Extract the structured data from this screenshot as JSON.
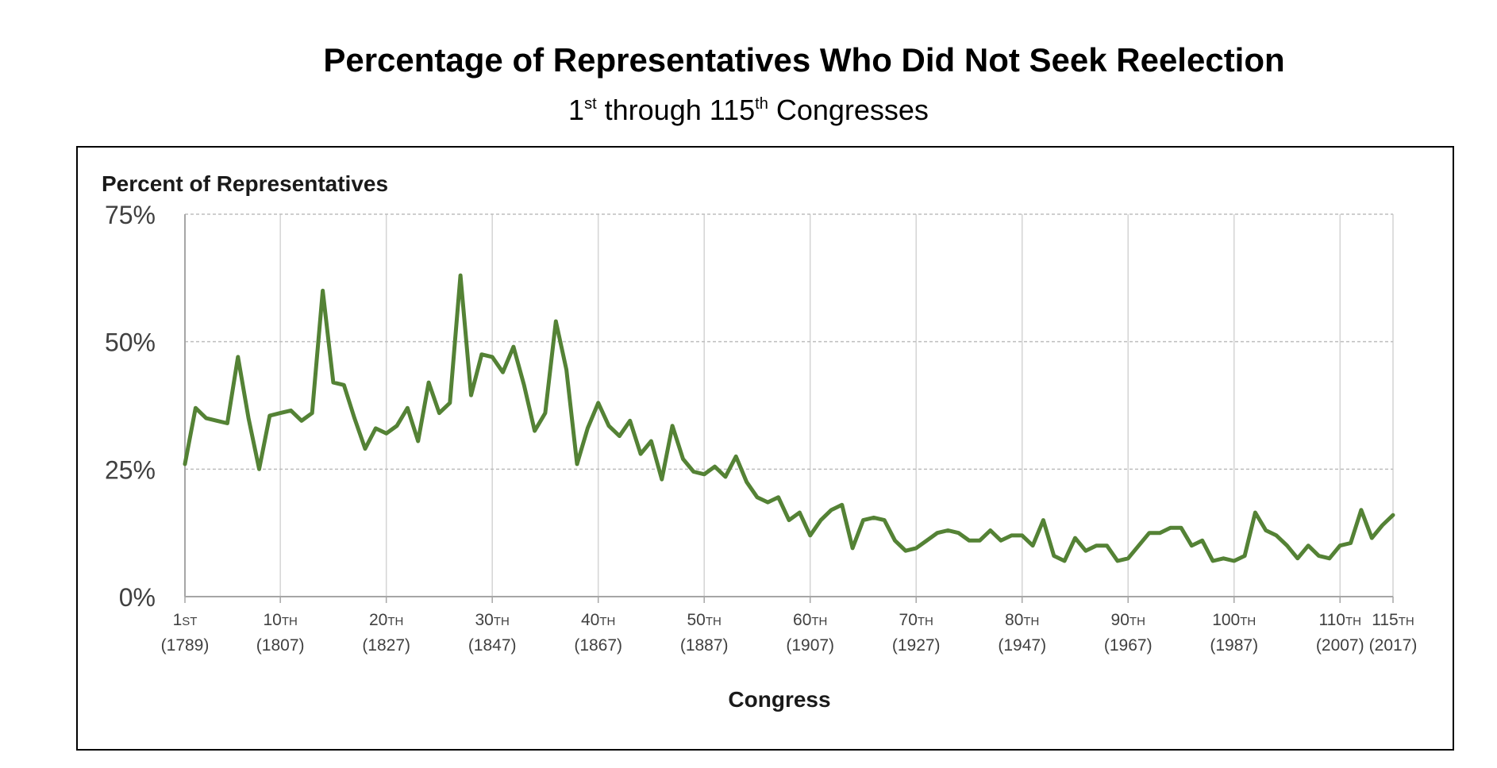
{
  "header": {
    "title": "Percentage of Representatives Who Did Not Seek Reelection",
    "subtitle_1": "1",
    "subtitle_1_sup": "st",
    "subtitle_2": " through 115",
    "subtitle_2_sup": "th",
    "subtitle_3": " Congresses"
  },
  "chart_data": {
    "type": "line",
    "ylabel": "Percent of Representatives",
    "xlabel": "Congress",
    "ylim": [
      0,
      75
    ],
    "yticks": [
      "0%",
      "25%",
      "50%",
      "75%"
    ],
    "ytick_values": [
      0,
      25,
      50,
      75
    ],
    "xlim": [
      1,
      115
    ],
    "grid": true,
    "line_color": "#548235",
    "xticks": [
      {
        "congress": 1,
        "ordinal": "1",
        "suffix": "ST",
        "year": "(1789)"
      },
      {
        "congress": 10,
        "ordinal": "10",
        "suffix": "TH",
        "year": "(1807)"
      },
      {
        "congress": 20,
        "ordinal": "20",
        "suffix": "TH",
        "year": "(1827)"
      },
      {
        "congress": 30,
        "ordinal": "30",
        "suffix": "TH",
        "year": "(1847)"
      },
      {
        "congress": 40,
        "ordinal": "40",
        "suffix": "TH",
        "year": "(1867)"
      },
      {
        "congress": 50,
        "ordinal": "50",
        "suffix": "TH",
        "year": "(1887)"
      },
      {
        "congress": 60,
        "ordinal": "60",
        "suffix": "TH",
        "year": "(1907)"
      },
      {
        "congress": 70,
        "ordinal": "70",
        "suffix": "TH",
        "year": "(1927)"
      },
      {
        "congress": 80,
        "ordinal": "80",
        "suffix": "TH",
        "year": "(1947)"
      },
      {
        "congress": 90,
        "ordinal": "90",
        "suffix": "TH",
        "year": "(1967)"
      },
      {
        "congress": 100,
        "ordinal": "100",
        "suffix": "TH",
        "year": "(1987)"
      },
      {
        "congress": 110,
        "ordinal": "110",
        "suffix": "TH",
        "year": "(2007)"
      },
      {
        "congress": 115,
        "ordinal": "115",
        "suffix": "TH",
        "year": "(2017)"
      }
    ],
    "x": [
      1,
      2,
      3,
      4,
      5,
      6,
      7,
      8,
      9,
      10,
      11,
      12,
      13,
      14,
      15,
      16,
      17,
      18,
      19,
      20,
      21,
      22,
      23,
      24,
      25,
      26,
      27,
      28,
      29,
      30,
      31,
      32,
      33,
      34,
      35,
      36,
      37,
      38,
      39,
      40,
      41,
      42,
      43,
      44,
      45,
      46,
      47,
      48,
      49,
      50,
      51,
      52,
      53,
      54,
      55,
      56,
      57,
      58,
      59,
      60,
      61,
      62,
      63,
      64,
      65,
      66,
      67,
      68,
      69,
      70,
      71,
      72,
      73,
      74,
      75,
      76,
      77,
      78,
      79,
      80,
      81,
      82,
      83,
      84,
      85,
      86,
      87,
      88,
      89,
      90,
      91,
      92,
      93,
      94,
      95,
      96,
      97,
      98,
      99,
      100,
      101,
      102,
      103,
      104,
      105,
      106,
      107,
      108,
      109,
      110,
      111,
      112,
      113,
      114,
      115
    ],
    "values": [
      26,
      37,
      35,
      34.5,
      34,
      47,
      35,
      25,
      35.5,
      36,
      36.5,
      34.5,
      36,
      60,
      42,
      41.5,
      35,
      29,
      33,
      32,
      33.5,
      37,
      30.5,
      42,
      36,
      38,
      63,
      39.5,
      47.5,
      47,
      44,
      49,
      41.5,
      32.5,
      36,
      54,
      44.5,
      26,
      33,
      38,
      33.5,
      31.5,
      34.5,
      28,
      30.5,
      23,
      33.5,
      27,
      24.5,
      24,
      25.5,
      23.5,
      27.5,
      22.5,
      19.5,
      18.5,
      19.5,
      15,
      16.5,
      12,
      15,
      17,
      18,
      9.5,
      15,
      15.5,
      15,
      11,
      9,
      9.5,
      11,
      12.5,
      13,
      12.5,
      11,
      11,
      13,
      11,
      12,
      12,
      10,
      15,
      8,
      7,
      11.5,
      9,
      10,
      10,
      7,
      7.5,
      10,
      12.5,
      12.5,
      13.5,
      13.5,
      10,
      11,
      7,
      7.5,
      7,
      8,
      16.5,
      13,
      12,
      10,
      7.5,
      10,
      8,
      7.5,
      10,
      10.5,
      17,
      11.5,
      14,
      16
    ]
  }
}
